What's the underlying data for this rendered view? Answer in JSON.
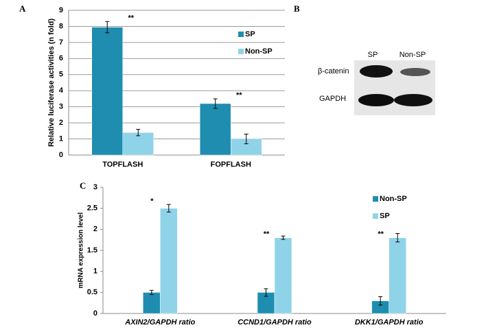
{
  "panels": [
    "A",
    "B",
    "C"
  ],
  "blot": {
    "columns": [
      "SP",
      "Non-SP"
    ],
    "rows": [
      "β-catenin",
      "GAPDH"
    ]
  },
  "chart_data": [
    {
      "type": "bar",
      "ylabel": "Relative luciferase activities (n fold)",
      "categories": [
        "TOPFLASH",
        "FOPFLASH"
      ],
      "series": [
        {
          "name": "SP",
          "color": "#1e8db0",
          "values": [
            7.95,
            3.2
          ],
          "errors": [
            0.35,
            0.3
          ]
        },
        {
          "name": "Non-SP",
          "color": "#8fd3e9",
          "values": [
            1.4,
            1.0
          ],
          "errors": [
            0.2,
            0.3
          ]
        }
      ],
      "annotations": [
        "**",
        "**"
      ],
      "ylim": [
        0,
        9
      ],
      "yticks": [
        0,
        1,
        2,
        3,
        4,
        5,
        6,
        7,
        8,
        9
      ],
      "grid": true
    },
    {
      "type": "bar",
      "ylabel": "mRNA expression level",
      "categories": [
        "AXIN2/GAPDH ratio",
        "CCND1/GAPDH ratio",
        "DKK1/GAPDH ratio"
      ],
      "series": [
        {
          "name": "Non-SP",
          "color": "#1e8db0",
          "values": [
            0.5,
            0.5,
            0.3
          ],
          "errors": [
            0.05,
            0.09,
            0.1
          ]
        },
        {
          "name": "SP",
          "color": "#8fd3e9",
          "values": [
            2.5,
            1.8,
            1.8
          ],
          "errors": [
            0.09,
            0.04,
            0.1
          ]
        }
      ],
      "annotations": [
        "*",
        "**",
        "**"
      ],
      "ylim": [
        0,
        3
      ],
      "yticks": [
        0,
        0.5,
        1,
        1.5,
        2,
        2.5,
        3
      ],
      "grid": false
    }
  ]
}
